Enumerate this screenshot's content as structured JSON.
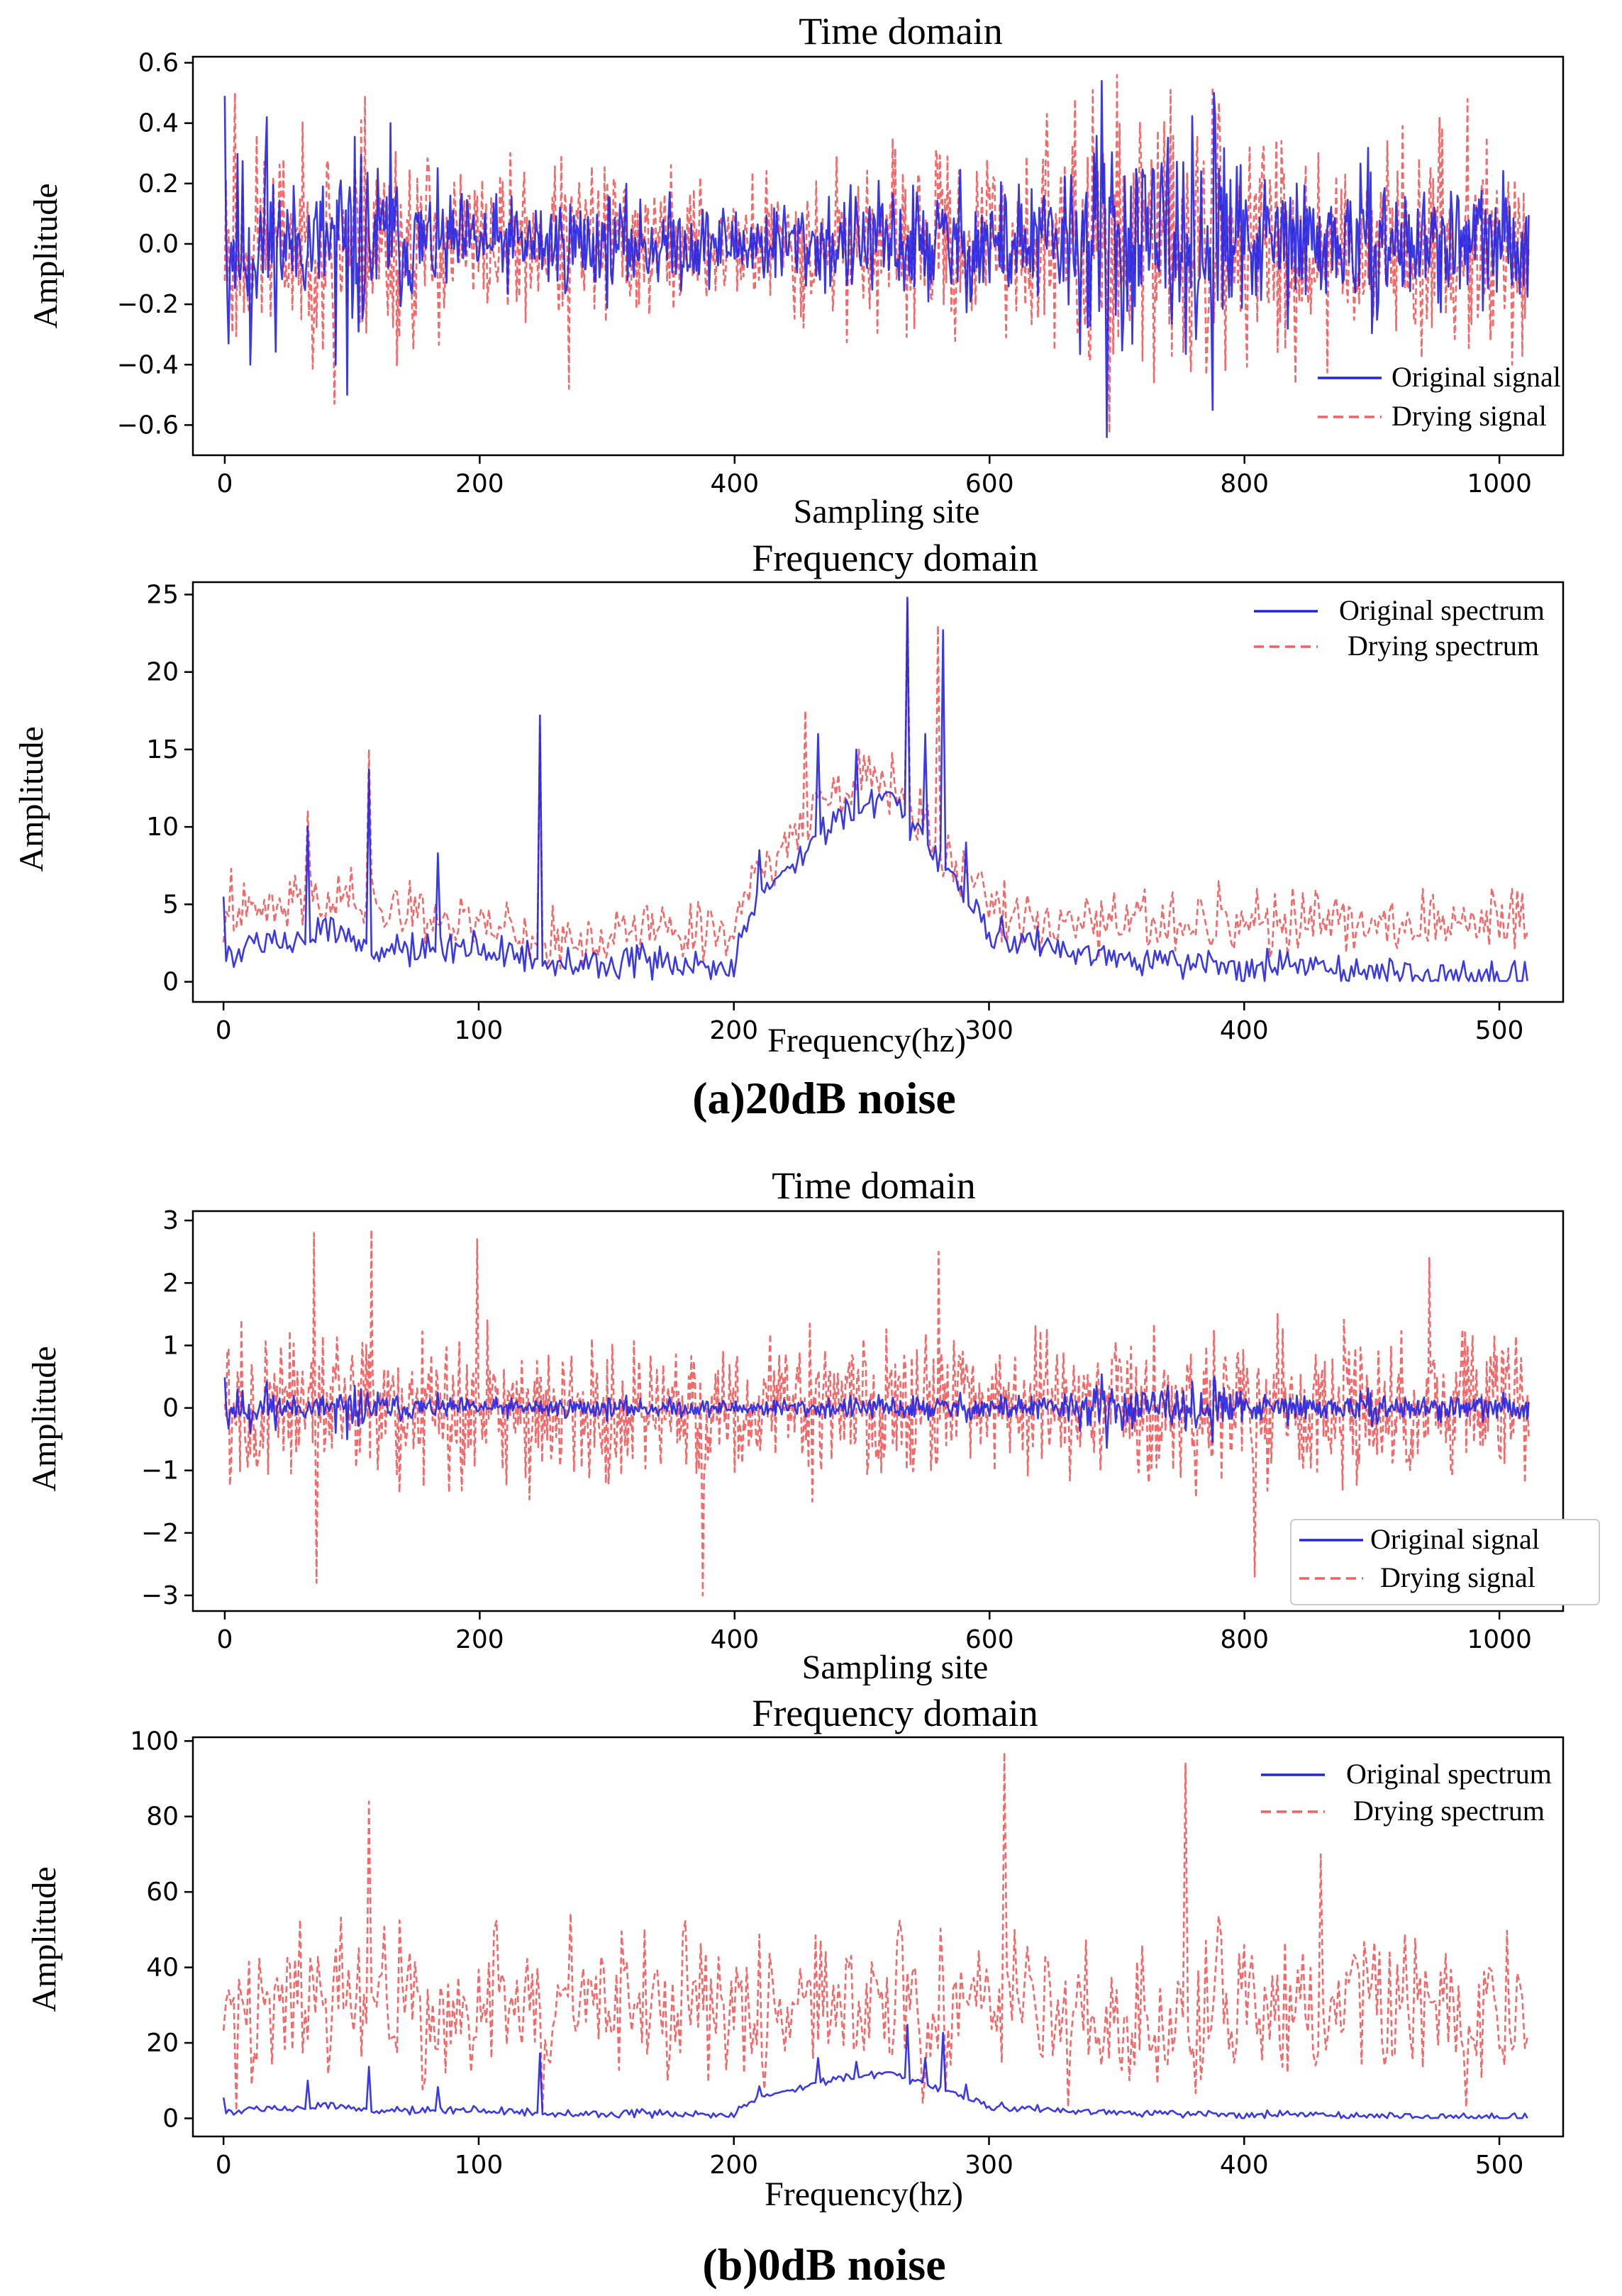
{
  "colors": {
    "original": "#2323e6",
    "drying": "#f26060"
  },
  "captions": [
    "(a)20dB noise",
    "(b)0dB noise"
  ],
  "chart_data": [
    {
      "type": "line",
      "panel": "a-time",
      "title": "Time domain",
      "xlabel": "Sampling site",
      "ylabel": "Amplitude",
      "xlim": [
        -25,
        1050
      ],
      "ylim": [
        -0.7,
        0.62
      ],
      "xticks": [
        0,
        200,
        400,
        600,
        800,
        1000
      ],
      "yticks": [
        -0.6,
        -0.4,
        -0.2,
        0.0,
        0.2,
        0.4,
        0.6
      ],
      "ytick_labels": [
        "−0.6",
        "−0.4",
        "−0.2",
        "0.0",
        "0.2",
        "0.4",
        "0.6"
      ],
      "legend": {
        "position": "bottom-right",
        "entries": [
          "Original signal",
          "Drying signal"
        ]
      },
      "series": [
        {
          "name": "Original signal",
          "style": "solid",
          "n": 1024,
          "x_max": 1023,
          "seed": 11,
          "amp": 0.13,
          "envelope": [
            [
              0,
              1.6
            ],
            [
              30,
              1.7
            ],
            [
              60,
              0.9
            ],
            [
              100,
              1.8
            ],
            [
              140,
              1.1
            ],
            [
              200,
              0.8
            ],
            [
              300,
              0.9
            ],
            [
              400,
              0.7
            ],
            [
              500,
              1.0
            ],
            [
              600,
              1.2
            ],
            [
              650,
              1.1
            ],
            [
              690,
              2.2
            ],
            [
              720,
              1.4
            ],
            [
              780,
              2.1
            ],
            [
              800,
              1.2
            ],
            [
              900,
              1.2
            ],
            [
              1023,
              1.0
            ]
          ],
          "peaks": [
            [
              0,
              0.49
            ],
            [
              3,
              -0.33
            ],
            [
              20,
              -0.4
            ],
            [
              33,
              0.42
            ],
            [
              87,
              -0.4
            ],
            [
              96,
              -0.5
            ],
            [
              130,
              0.4
            ],
            [
              688,
              0.54
            ],
            [
              692,
              -0.64
            ],
            [
              776,
              0.5
            ],
            [
              775,
              -0.55
            ]
          ]
        },
        {
          "name": "Drying signal",
          "style": "dashed",
          "n": 1024,
          "x_max": 1023,
          "seed": 23,
          "amp": 0.17,
          "envelope": [
            [
              0,
              1.6
            ],
            [
              60,
              1.2
            ],
            [
              100,
              1.8
            ],
            [
              200,
              1.0
            ],
            [
              300,
              1.1
            ],
            [
              400,
              0.9
            ],
            [
              500,
              1.1
            ],
            [
              600,
              1.2
            ],
            [
              690,
              2.0
            ],
            [
              780,
              1.8
            ],
            [
              900,
              1.4
            ],
            [
              1023,
              1.3
            ]
          ],
          "peaks": [
            [
              8,
              0.5
            ],
            [
              86,
              -0.53
            ],
            [
              110,
              0.49
            ],
            [
              270,
              -0.48
            ],
            [
              700,
              0.56
            ],
            [
              775,
              0.52
            ],
            [
              975,
              0.48
            ],
            [
              1010,
              -0.4
            ]
          ]
        }
      ]
    },
    {
      "type": "line",
      "panel": "a-freq",
      "title": "Frequency domain",
      "xlabel": "Frequency(hz)",
      "ylabel": "Amplitude",
      "xlim": [
        -12,
        525
      ],
      "ylim": [
        -1.3,
        25.8
      ],
      "xticks": [
        0,
        100,
        200,
        300,
        400,
        500
      ],
      "yticks": [
        0,
        5,
        10,
        15,
        20,
        25
      ],
      "ytick_labels": [
        "0",
        "5",
        "10",
        "15",
        "20",
        "25"
      ],
      "legend": {
        "position": "top-right",
        "entries": [
          "Original spectrum",
          "Drying spectrum"
        ]
      },
      "series": [
        {
          "name": "Original spectrum",
          "style": "solid",
          "n": 512,
          "x_max": 511,
          "seed": 5,
          "positive": true,
          "baseline": [
            [
              0,
              1.8
            ],
            [
              20,
              2.5
            ],
            [
              40,
              3.5
            ],
            [
              60,
              2.0
            ],
            [
              100,
              2.0
            ],
            [
              130,
              1.2
            ],
            [
              200,
              1.0
            ],
            [
              210,
              5.5
            ],
            [
              240,
              10.0
            ],
            [
              260,
              12.0
            ],
            [
              290,
              6.0
            ],
            [
              300,
              3.0
            ],
            [
              330,
              2.0
            ],
            [
              360,
              1.5
            ],
            [
              400,
              0.8
            ],
            [
              460,
              0.6
            ],
            [
              470,
              0.3
            ],
            [
              511,
              0.3
            ]
          ],
          "jitter": 0.9,
          "peaks": [
            [
              0,
              5.5
            ],
            [
              33,
              10.0
            ],
            [
              57,
              13.7
            ],
            [
              84,
              8.3
            ],
            [
              124,
              17.2
            ],
            [
              210,
              8.5
            ],
            [
              233,
              16.0
            ],
            [
              248,
              15.0
            ],
            [
              268,
              24.8
            ],
            [
              275,
              16.0
            ],
            [
              282,
              22.7
            ],
            [
              291,
              9.0
            ]
          ]
        },
        {
          "name": "Drying spectrum",
          "style": "dashed",
          "n": 512,
          "x_max": 511,
          "seed": 41,
          "positive": true,
          "baseline": [
            [
              0,
              3.5
            ],
            [
              40,
              5.5
            ],
            [
              100,
              3.8
            ],
            [
              130,
              2.5
            ],
            [
              160,
              3.0
            ],
            [
              200,
              3.5
            ],
            [
              210,
              7.0
            ],
            [
              240,
              12.0
            ],
            [
              260,
              13.0
            ],
            [
              290,
              6.5
            ],
            [
              310,
              3.5
            ],
            [
              400,
              3.5
            ],
            [
              511,
              3.8
            ]
          ],
          "jitter": 1.6,
          "peaks": [
            [
              3,
              7.3
            ],
            [
              33,
              11.0
            ],
            [
              57,
              15.0
            ],
            [
              124,
              16.5
            ],
            [
              228,
              17.5
            ],
            [
              268,
              24.5
            ],
            [
              280,
              23.0
            ],
            [
              390,
              6.5
            ],
            [
              405,
              6.0
            ],
            [
              470,
              6.0
            ],
            [
              505,
              6.0
            ]
          ]
        }
      ]
    },
    {
      "type": "line",
      "panel": "b-time",
      "title": "Time domain",
      "xlabel": "Sampling site",
      "ylabel": "Amplitude",
      "xlim": [
        -25,
        1050
      ],
      "ylim": [
        -3.25,
        3.15
      ],
      "xticks": [
        0,
        200,
        400,
        600,
        800,
        1000
      ],
      "yticks": [
        -3,
        -2,
        -1,
        0,
        1,
        2,
        3
      ],
      "ytick_labels": [
        "−3",
        "−2",
        "−1",
        "0",
        "1",
        "2",
        "3"
      ],
      "legend": {
        "position": "bottom-right",
        "entries": [
          "Original signal",
          "Drying signal"
        ]
      },
      "series": [
        {
          "name": "Original signal",
          "style": "solid",
          "n": 1024,
          "x_max": 1023,
          "seed": 11,
          "amp": 0.13,
          "envelope": [
            [
              0,
              1.6
            ],
            [
              30,
              1.7
            ],
            [
              60,
              0.9
            ],
            [
              100,
              1.8
            ],
            [
              140,
              1.1
            ],
            [
              200,
              0.8
            ],
            [
              300,
              0.9
            ],
            [
              400,
              0.7
            ],
            [
              500,
              1.0
            ],
            [
              600,
              1.2
            ],
            [
              650,
              1.1
            ],
            [
              690,
              2.2
            ],
            [
              720,
              1.4
            ],
            [
              780,
              2.1
            ],
            [
              800,
              1.2
            ],
            [
              900,
              1.2
            ],
            [
              1023,
              1.0
            ]
          ],
          "peaks": [
            [
              0,
              0.49
            ],
            [
              3,
              -0.33
            ],
            [
              20,
              -0.4
            ],
            [
              33,
              0.42
            ],
            [
              87,
              -0.4
            ],
            [
              96,
              -0.5
            ],
            [
              688,
              0.54
            ],
            [
              692,
              -0.64
            ],
            [
              776,
              0.5
            ],
            [
              775,
              -0.55
            ]
          ]
        },
        {
          "name": "Drying signal",
          "style": "dashed",
          "n": 1024,
          "x_max": 1023,
          "seed": 57,
          "amp": 0.85,
          "envelope": [
            [
              0,
              1.0
            ],
            [
              1023,
              1.0
            ]
          ],
          "peaks": [
            [
              70,
              2.8
            ],
            [
              72,
              -2.8
            ],
            [
              115,
              2.85
            ],
            [
              198,
              2.7
            ],
            [
              375,
              -3.0
            ],
            [
              560,
              2.5
            ],
            [
              808,
              -2.7
            ],
            [
              945,
              2.4
            ],
            [
              1020,
              -1.2
            ]
          ]
        }
      ]
    },
    {
      "type": "line",
      "panel": "b-freq",
      "title": "Frequency domain",
      "xlabel": "Frequency(hz)",
      "ylabel": "Amplitude",
      "xlim": [
        -12,
        525
      ],
      "ylim": [
        -4.8,
        101
      ],
      "xticks": [
        0,
        100,
        200,
        300,
        400,
        500
      ],
      "yticks": [
        0,
        20,
        40,
        60,
        80,
        100
      ],
      "ytick_labels": [
        "0",
        "20",
        "40",
        "60",
        "80",
        "100"
      ],
      "legend": {
        "position": "top-right",
        "entries": [
          "Original spectrum",
          "Drying spectrum"
        ]
      },
      "series": [
        {
          "name": "Original spectrum",
          "style": "solid",
          "n": 512,
          "x_max": 511,
          "seed": 5,
          "positive": true,
          "baseline": [
            [
              0,
              1.8
            ],
            [
              20,
              2.5
            ],
            [
              40,
              3.5
            ],
            [
              60,
              2.0
            ],
            [
              100,
              2.0
            ],
            [
              130,
              1.2
            ],
            [
              200,
              1.0
            ],
            [
              210,
              5.5
            ],
            [
              240,
              10.0
            ],
            [
              260,
              12.0
            ],
            [
              290,
              6.0
            ],
            [
              300,
              3.0
            ],
            [
              330,
              2.0
            ],
            [
              360,
              1.5
            ],
            [
              400,
              0.8
            ],
            [
              460,
              0.6
            ],
            [
              470,
              0.3
            ],
            [
              511,
              0.3
            ]
          ],
          "jitter": 0.9,
          "peaks": [
            [
              0,
              5.5
            ],
            [
              33,
              10.0
            ],
            [
              57,
              13.7
            ],
            [
              84,
              8.3
            ],
            [
              124,
              17.2
            ],
            [
              210,
              8.5
            ],
            [
              233,
              16.0
            ],
            [
              248,
              15.0
            ],
            [
              268,
              24.8
            ],
            [
              275,
              16.0
            ],
            [
              282,
              22.7
            ],
            [
              291,
              9.0
            ]
          ]
        },
        {
          "name": "Drying spectrum",
          "style": "dashed",
          "n": 512,
          "x_max": 511,
          "seed": 77,
          "positive": true,
          "baseline": [
            [
              0,
              28
            ],
            [
              511,
              26
            ]
          ],
          "jitter": 17,
          "peaks": [
            [
              57,
              84
            ],
            [
              306,
              97
            ],
            [
              377,
              94
            ],
            [
              331,
              75
            ],
            [
              430,
              70
            ],
            [
              5,
              2
            ],
            [
              125,
              2
            ],
            [
              331,
              3
            ],
            [
              487,
              3
            ]
          ]
        }
      ]
    }
  ]
}
